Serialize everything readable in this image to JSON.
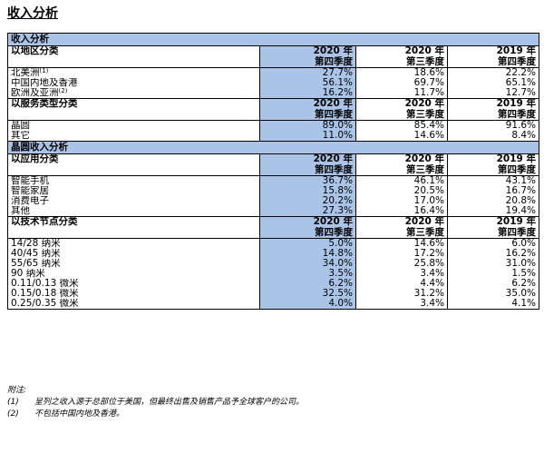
{
  "page_title": "收入分析",
  "table": {
    "section1_title": "收入分析",
    "section2_title": "晶圆收入分析",
    "columns": [
      {
        "year": "2020 年",
        "quarter": "第四季度"
      },
      {
        "year": "2020 年",
        "quarter": "第三季度"
      },
      {
        "year": "2019 年",
        "quarter": "第四季度"
      }
    ],
    "groups": [
      {
        "label": "以地区分类",
        "rows": [
          {
            "label": "北美洲",
            "note": "(1)",
            "values": [
              "27.7%",
              "18.6%",
              "22.2%"
            ]
          },
          {
            "label": "中国内地及香港",
            "note": "",
            "values": [
              "56.1%",
              "69.7%",
              "65.1%"
            ]
          },
          {
            "label": "欧洲及亚洲",
            "note": "(2)",
            "values": [
              "16.2%",
              "11.7%",
              "12.7%"
            ]
          }
        ]
      },
      {
        "label": "以服务类型分类",
        "rows": [
          {
            "label": "晶圆",
            "note": "",
            "values": [
              "89.0%",
              "85.4%",
              "91.6%"
            ]
          },
          {
            "label": "其它",
            "note": "",
            "values": [
              "11.0%",
              "14.6%",
              "8.4%"
            ]
          }
        ]
      },
      {
        "label": "以应用分类",
        "rows": [
          {
            "label": "智能手机",
            "note": "",
            "values": [
              "36.7%",
              "46.1%",
              "43.1%"
            ]
          },
          {
            "label": "智能家居",
            "note": "",
            "values": [
              "15.8%",
              "20.5%",
              "16.7%"
            ]
          },
          {
            "label": "消费电子",
            "note": "",
            "values": [
              "20.2%",
              "17.0%",
              "20.8%"
            ]
          },
          {
            "label": "其他",
            "note": "",
            "values": [
              "27.3%",
              "16.4%",
              "19.4%"
            ]
          }
        ]
      },
      {
        "label": "以技术节点分类",
        "rows": [
          {
            "label": "14/28 纳米",
            "note": "",
            "values": [
              "5.0%",
              "14.6%",
              "6.0%"
            ]
          },
          {
            "label": "40/45 纳米",
            "note": "",
            "values": [
              "14.8%",
              "17.2%",
              "16.2%"
            ]
          },
          {
            "label": "55/65 纳米",
            "note": "",
            "values": [
              "34.0%",
              "25.8%",
              "31.0%"
            ]
          },
          {
            "label": "90 纳米",
            "note": "",
            "values": [
              "3.5%",
              "3.4%",
              "1.5%"
            ]
          },
          {
            "label": "0.11/0.13 微米",
            "note": "",
            "values": [
              "6.2%",
              "4.4%",
              "6.2%"
            ]
          },
          {
            "label": "0.15/0.18 微米",
            "note": "",
            "values": [
              "32.5%",
              "31.2%",
              "35.0%"
            ]
          },
          {
            "label": "0.25/0.35 微米",
            "note": "",
            "values": [
              "4.0%",
              "3.4%",
              "4.1%"
            ]
          }
        ]
      }
    ]
  },
  "notes": {
    "title": "附注:",
    "items": [
      {
        "num": "(1)",
        "text": "呈列之收入源于总部位于美国，但最终出售及销售产品予全球客户的公司。"
      },
      {
        "num": "(2)",
        "text": "不包括中国内地及香港。"
      }
    ]
  },
  "colors": {
    "highlight": "#a9c4e7"
  }
}
